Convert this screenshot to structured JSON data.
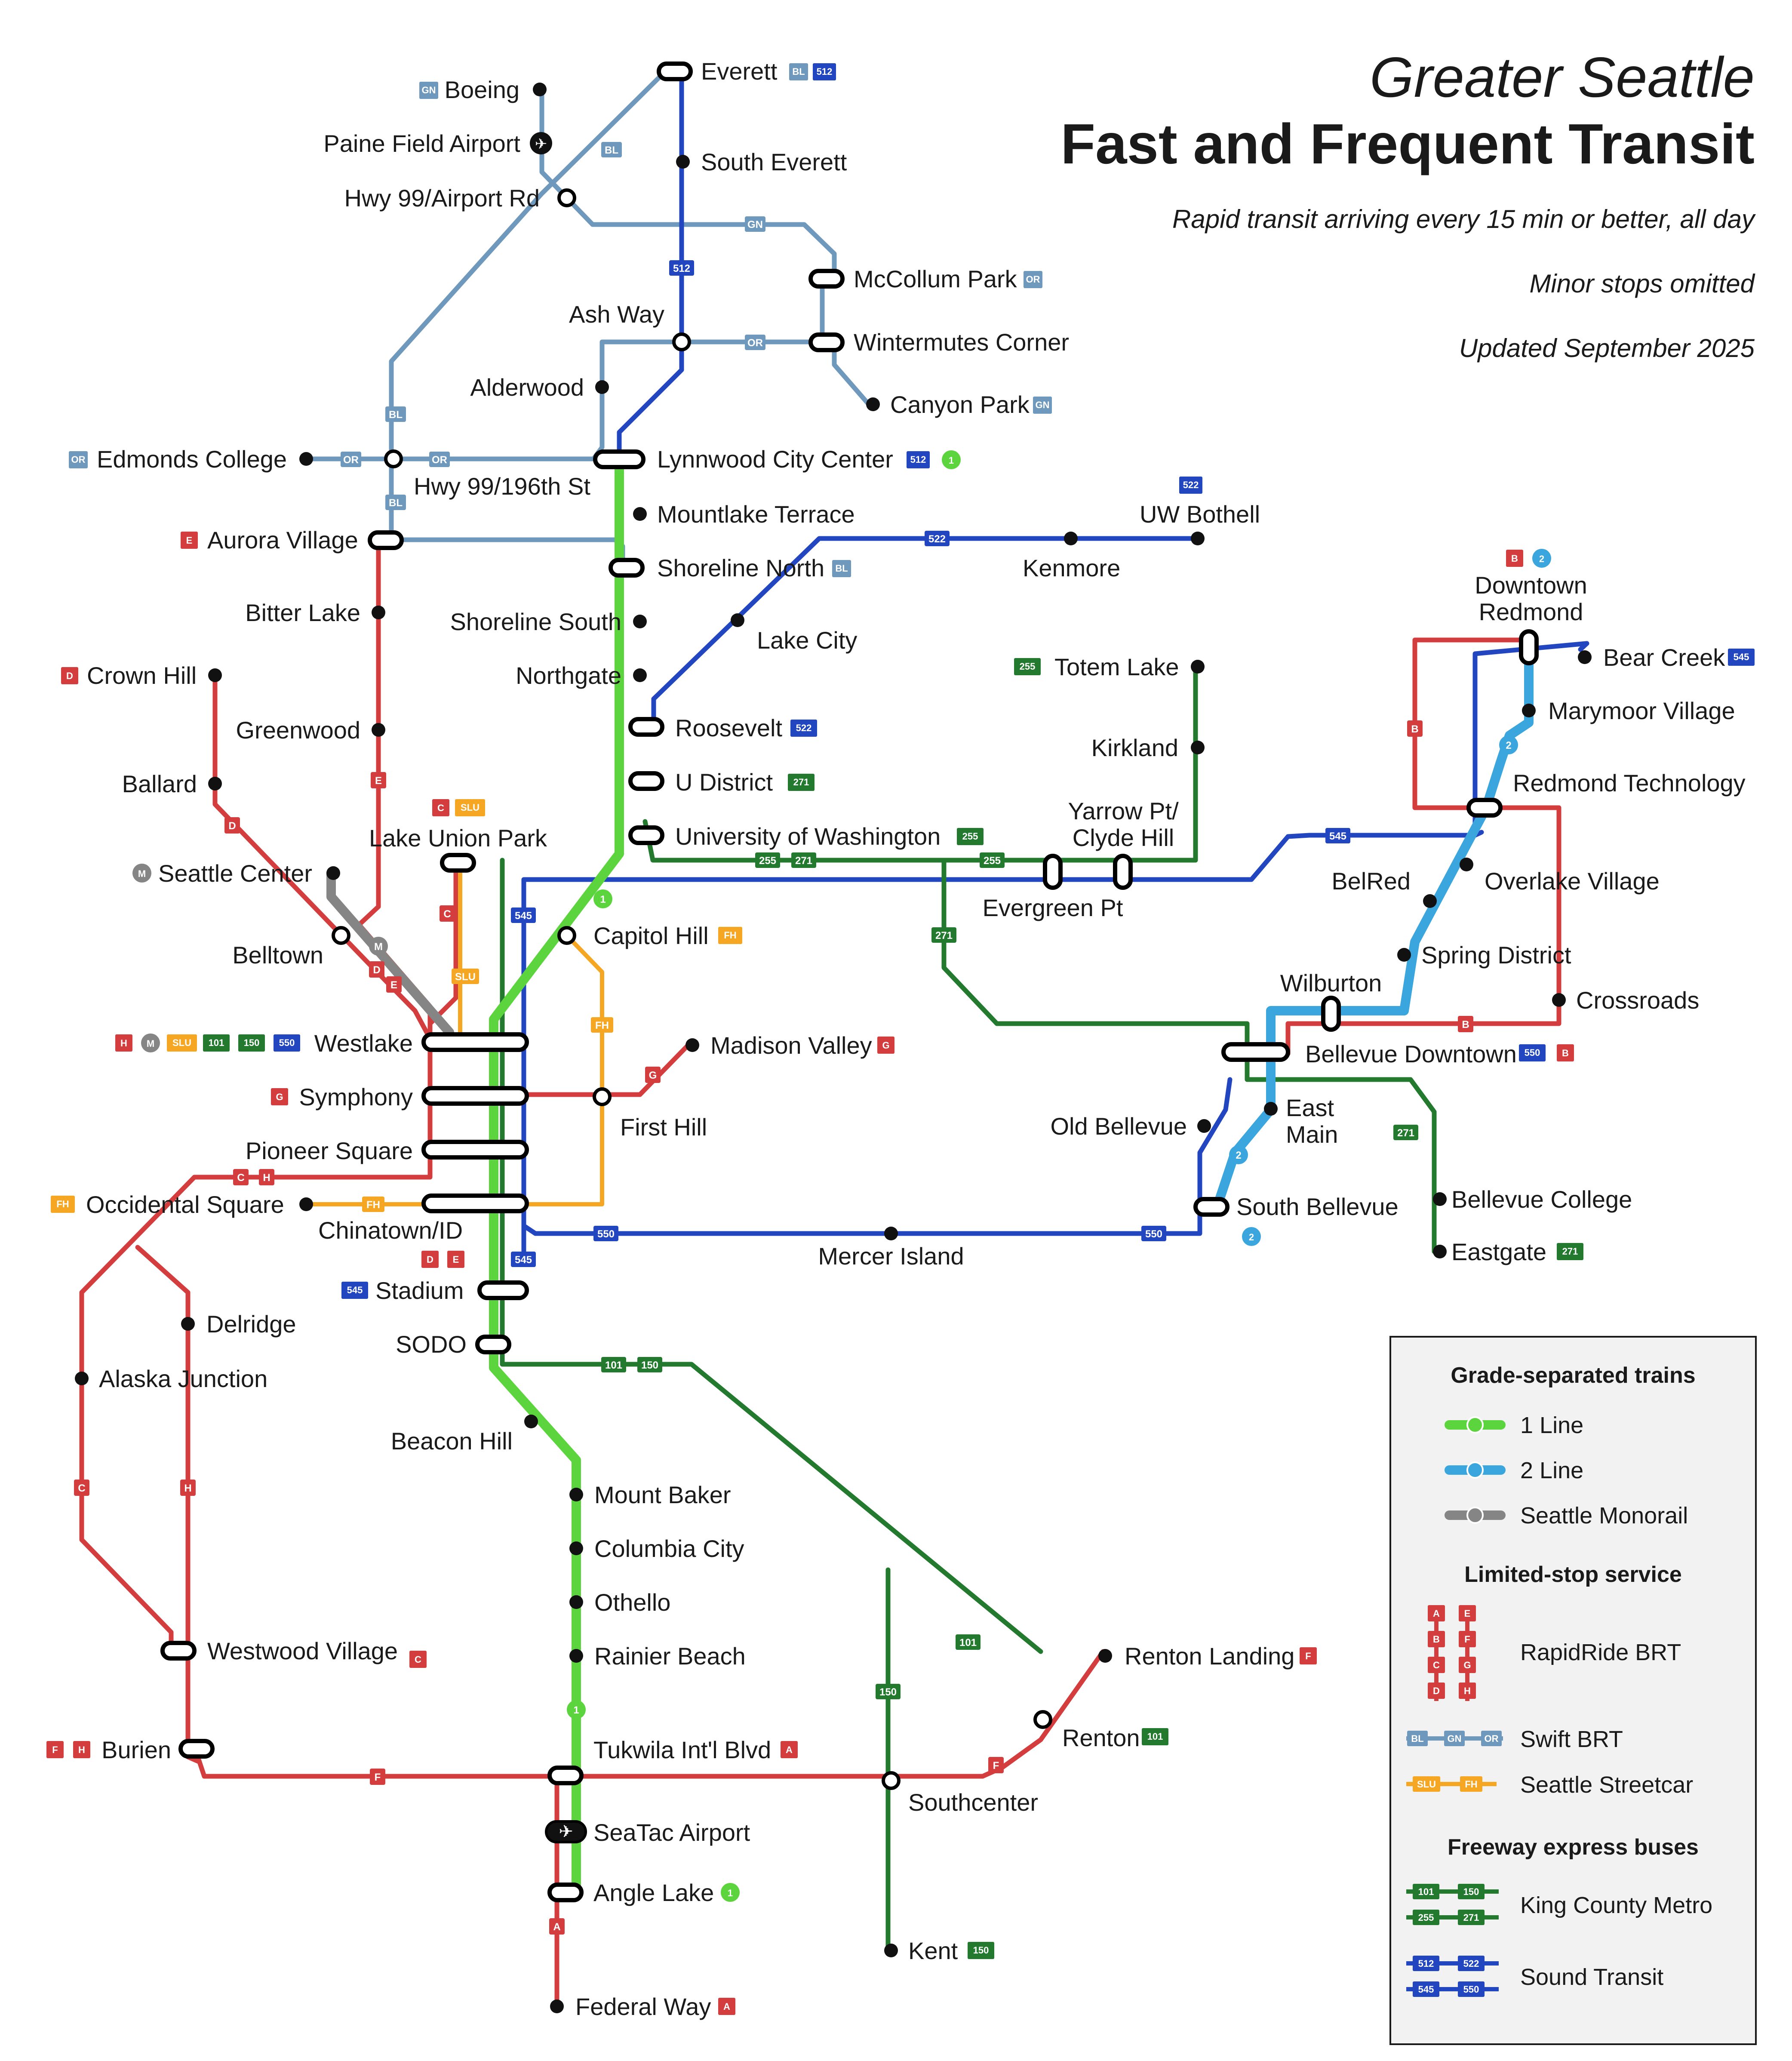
{
  "title": {
    "line1": "Greater Seattle",
    "line2": "Fast and Frequent Transit",
    "sub1": "Rapid transit arriving every 15 min or better, all day",
    "sub2": "Minor stops omitted",
    "sub3": "Updated September 2025"
  },
  "colors": {
    "line1": "#5bd43d",
    "line2": "#3aa6dd",
    "monorail": "#858585",
    "rapidride": "#d43d3d",
    "swift": "#6f98bd",
    "streetcar": "#f5a623",
    "kcm": "#237a2e",
    "sound_transit": "#2246c0"
  },
  "stations": {
    "everett": "Everett",
    "boeing": "Boeing",
    "paine_field": "Paine Field Airport",
    "hwy99_airport": "Hwy 99/Airport Rd",
    "south_everett": "South Everett",
    "mccollum": "McCollum Park",
    "ash_way": "Ash Way",
    "wintermutes": "Wintermutes Corner",
    "canyon_park": "Canyon Park",
    "alderwood": "Alderwood",
    "edmonds_college": "Edmonds College",
    "hwy99_196": "Hwy 99/196th St",
    "lynnwood": "Lynnwood City Center",
    "mountlake": "Mountlake Terrace",
    "uw_bothell": "UW Bothell",
    "aurora_village": "Aurora Village",
    "shoreline_north": "Shoreline North",
    "kenmore": "Kenmore",
    "bitter_lake": "Bitter Lake",
    "shoreline_south": "Shoreline South",
    "lake_city": "Lake City",
    "downtown_redmond_1": "Downtown",
    "downtown_redmond_2": "Redmond",
    "crown_hill": "Crown Hill",
    "northgate": "Northgate",
    "totem_lake": "Totem Lake",
    "bear_creek": "Bear Creek",
    "greenwood": "Greenwood",
    "roosevelt": "Roosevelt",
    "marymoor": "Marymoor Village",
    "kirkland": "Kirkland",
    "ballard": "Ballard",
    "u_district": "U District",
    "redmond_tech": "Redmond Technology",
    "yarrow_1": "Yarrow Pt/",
    "yarrow_2": "Clyde Hill",
    "lake_union": "Lake Union Park",
    "uw": "University of Washington",
    "seattle_center": "Seattle Center",
    "belred": "BelRed",
    "overlake": "Overlake Village",
    "evergreen": "Evergreen Pt",
    "capitol_hill": "Capitol Hill",
    "belltown": "Belltown",
    "spring_district": "Spring District",
    "wilburton": "Wilburton",
    "crossroads": "Crossroads",
    "westlake": "Westlake",
    "madison_valley": "Madison Valley",
    "bellevue_downtown": "Bellevue Downtown",
    "symphony": "Symphony",
    "east_main_1": "East",
    "east_main_2": "Main",
    "first_hill": "First Hill",
    "old_bellevue": "Old Bellevue",
    "pioneer_square": "Pioneer Square",
    "occidental": "Occidental Square",
    "chinatown": "Chinatown/ID",
    "south_bellevue": "South Bellevue",
    "bellevue_college": "Bellevue College",
    "mercer_island": "Mercer Island",
    "eastgate": "Eastgate",
    "stadium": "Stadium",
    "delridge": "Delridge",
    "sodo": "SODO",
    "alaska_junction": "Alaska Junction",
    "beacon_hill": "Beacon Hill",
    "mount_baker": "Mount Baker",
    "columbia_city": "Columbia City",
    "othello": "Othello",
    "rainier_beach": "Rainier Beach",
    "westwood": "Westwood Village",
    "renton_landing": "Renton Landing",
    "renton": "Renton",
    "burien": "Burien",
    "tukwila": "Tukwila Int'l Blvd",
    "southcenter": "Southcenter",
    "seatac": "SeaTac Airport",
    "angle_lake": "Angle Lake",
    "kent": "Kent",
    "federal_way": "Federal Way"
  },
  "legend": {
    "grade_separated": "Grade-separated trains",
    "line1": "1 Line",
    "line2": "2 Line",
    "monorail": "Seattle Monorail",
    "limited_stop": "Limited-stop service",
    "rapidride": "RapidRide BRT",
    "swift": "Swift BRT",
    "streetcar": "Seattle Streetcar",
    "freeway": "Freeway express buses",
    "kcm": "King County Metro",
    "sound_transit": "Sound Transit"
  },
  "route_codes": {
    "A": "A",
    "B": "B",
    "C": "C",
    "D": "D",
    "E": "E",
    "F": "F",
    "G": "G",
    "H": "H",
    "BL": "BL",
    "GN": "GN",
    "OR": "OR",
    "SLU": "SLU",
    "FH": "FH",
    "M": "M",
    "one": "1",
    "two": "2",
    "r101": "101",
    "r150": "150",
    "r255": "255",
    "r271": "271",
    "r512": "512",
    "r522": "522",
    "r545": "545",
    "r550": "550"
  }
}
